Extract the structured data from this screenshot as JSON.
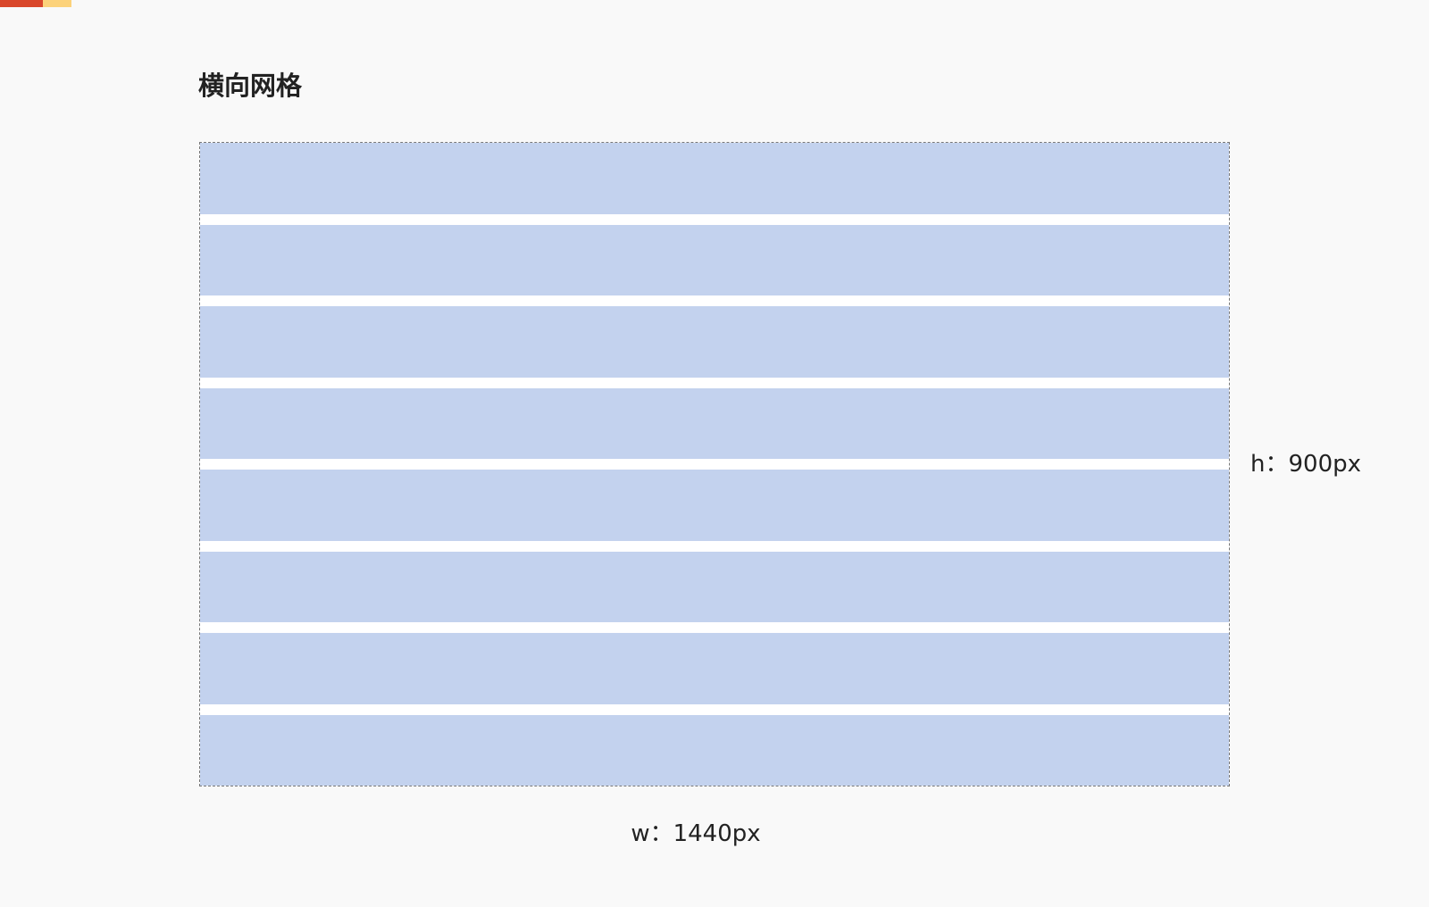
{
  "title": "横向网格",
  "height_label": "h：900px",
  "width_label": "w：1440px"
}
